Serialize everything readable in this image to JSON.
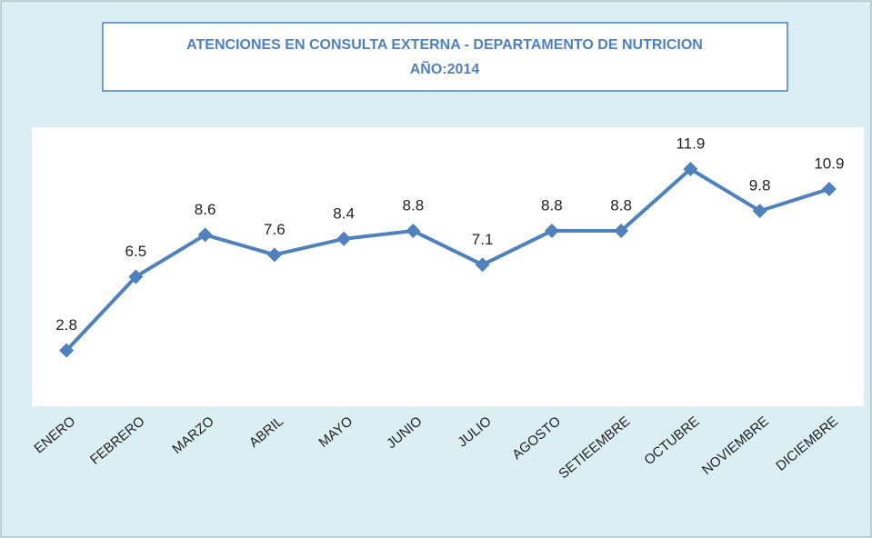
{
  "chart_data": {
    "type": "line",
    "title": "ATENCIONES EN CONSULTA EXTERNA - DEPARTAMENTO DE NUTRICION",
    "subtitle": "AÑO:2014",
    "categories": [
      "ENERO",
      "FEBRERO",
      "MARZO",
      "ABRIL",
      "MAYO",
      "JUNIO",
      "JULIO",
      "AGOSTO",
      "SETIEEMBRE",
      "OCTUBRE",
      "NOVIEMBRE",
      "DICIEMBRE"
    ],
    "series": [
      {
        "name": "Atenciones",
        "color": "#4f81bd",
        "values": [
          2.8,
          6.5,
          8.6,
          7.6,
          8.4,
          8.8,
          7.1,
          8.8,
          8.8,
          11.9,
          9.8,
          10.9
        ]
      }
    ],
    "ylim": [
      0,
      14
    ]
  }
}
